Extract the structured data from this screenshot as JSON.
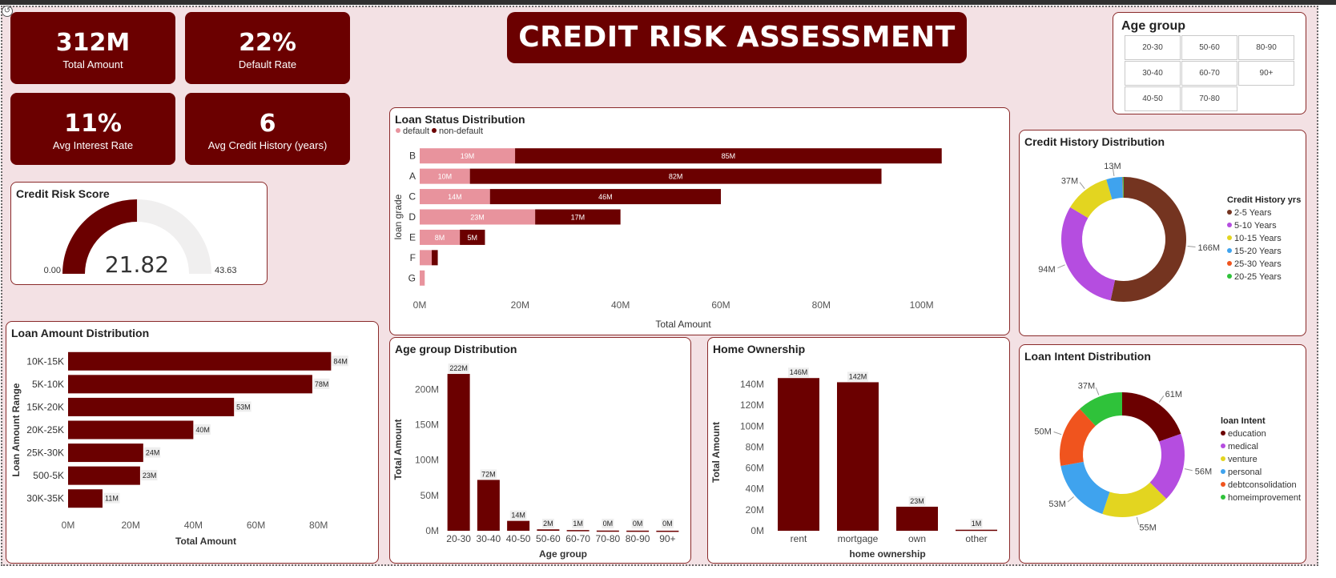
{
  "kpis": [
    {
      "value": "312M",
      "label": "Total Amount"
    },
    {
      "value": "22%",
      "label": "Default Rate"
    },
    {
      "value": "11%",
      "label": "Avg Interest Rate"
    },
    {
      "value": "6",
      "label": "Avg Credit History (years)"
    }
  ],
  "header": {
    "title": "CREDIT RISK ASSESSMENT"
  },
  "slicer": {
    "title": "Age group",
    "items": [
      "20-30",
      "50-60",
      "80-90",
      "30-40",
      "60-70",
      "90+",
      "40-50",
      "70-80"
    ]
  },
  "colors": {
    "accent": "#6b0000",
    "default": "#e8939d",
    "gaugeTrack": "#f0efef"
  },
  "chart_data": [
    {
      "id": "credit_risk_score",
      "type": "gauge",
      "title": "Credit Risk Score",
      "value": 21.82,
      "min": 0,
      "max": 43.63,
      "value_label": "21.82",
      "min_label": "0.00",
      "max_label": "43.63"
    },
    {
      "id": "loan_status",
      "type": "bar",
      "orientation": "horizontal",
      "stacked": true,
      "title": "Loan Status Distribution",
      "xlabel": "Total Amount",
      "ylabel": "loan grade",
      "categories": [
        "B",
        "A",
        "C",
        "D",
        "E",
        "F",
        "G"
      ],
      "series": [
        {
          "name": "default",
          "color": "#e8939d",
          "values": [
            19,
            10,
            14,
            23,
            8,
            2.4,
            1
          ],
          "labels": [
            "19M",
            "10M",
            "14M",
            "23M",
            "8M",
            "",
            ""
          ]
        },
        {
          "name": "non-default",
          "color": "#6b0000",
          "values": [
            85,
            82,
            46,
            17,
            5,
            1.2,
            0
          ],
          "labels": [
            "85M",
            "82M",
            "46M",
            "17M",
            "5M",
            "",
            ""
          ]
        }
      ],
      "xlim": [
        0,
        105
      ],
      "ticks": [
        0,
        20,
        40,
        60,
        80,
        100
      ],
      "tick_labels": [
        "0M",
        "20M",
        "40M",
        "60M",
        "80M",
        "100M"
      ],
      "legend": "top-left"
    },
    {
      "id": "credit_history",
      "type": "pie",
      "donut": true,
      "title": "Credit History Distribution",
      "legend_title": "Credit History yrs",
      "categories": [
        "2-5 Years",
        "5-10 Years",
        "10-15 Years",
        "15-20 Years",
        "25-30 Years",
        "20-25 Years"
      ],
      "values": [
        166,
        94,
        37,
        13,
        0.4,
        0.6
      ],
      "colors": [
        "#743420",
        "#b54de0",
        "#e3d520",
        "#3fa3ee",
        "#f0541e",
        "#2fc23a"
      ],
      "labels": [
        "166M",
        "94M",
        "37M",
        "13M",
        "",
        ""
      ],
      "legend": "right"
    },
    {
      "id": "loan_amount",
      "type": "bar",
      "orientation": "horizontal",
      "title": "Loan Amount Distribution",
      "xlabel": "Total Amount",
      "ylabel": "Loan Amount Range",
      "categories": [
        "10K-15K",
        "5K-10K",
        "15K-20K",
        "20K-25K",
        "25K-30K",
        "500-5K",
        "30K-35K"
      ],
      "values": [
        84,
        78,
        53,
        40,
        24,
        23,
        11
      ],
      "labels": [
        "84M",
        "78M",
        "53M",
        "40M",
        "24M",
        "23M",
        "11M"
      ],
      "xlim": [
        0,
        88
      ],
      "ticks": [
        0,
        20,
        40,
        60,
        80
      ],
      "tick_labels": [
        "0M",
        "20M",
        "40M",
        "60M",
        "80M"
      ]
    },
    {
      "id": "age_group",
      "type": "bar",
      "orientation": "vertical",
      "title": "Age group Distribution",
      "xlabel": "Age group",
      "ylabel": "Total Amount",
      "categories": [
        "20-30",
        "30-40",
        "40-50",
        "50-60",
        "60-70",
        "70-80",
        "80-90",
        "90+"
      ],
      "values": [
        222,
        72,
        14,
        2,
        1,
        0.3,
        0.2,
        0.1
      ],
      "labels": [
        "222M",
        "72M",
        "14M",
        "2M",
        "1M",
        "0M",
        "0M",
        "0M"
      ],
      "ylim": [
        0,
        230
      ],
      "ticks": [
        0,
        50,
        100,
        150,
        200
      ],
      "tick_labels": [
        "0M",
        "50M",
        "100M",
        "150M",
        "200M"
      ]
    },
    {
      "id": "home_ownership",
      "type": "bar",
      "orientation": "vertical",
      "title": "Home Ownership",
      "xlabel": "home ownership",
      "ylabel": "Total Amount",
      "categories": [
        "rent",
        "mortgage",
        "own",
        "other"
      ],
      "values": [
        146,
        142,
        23,
        1
      ],
      "labels": [
        "146M",
        "142M",
        "23M",
        "1M"
      ],
      "ylim": [
        0,
        150
      ],
      "ticks": [
        0,
        20,
        40,
        60,
        80,
        100,
        120,
        140
      ],
      "tick_labels": [
        "0M",
        "20M",
        "40M",
        "60M",
        "80M",
        "100M",
        "120M",
        "140M"
      ]
    },
    {
      "id": "loan_intent",
      "type": "pie",
      "donut": true,
      "title": "Loan Intent Distribution",
      "legend_title": "loan Intent",
      "categories": [
        "education",
        "medical",
        "venture",
        "personal",
        "debtconsolidation",
        "homeimprovement"
      ],
      "values": [
        61,
        56,
        55,
        53,
        50,
        37
      ],
      "colors": [
        "#6b0000",
        "#b54de0",
        "#e3d520",
        "#3fa3ee",
        "#f0541e",
        "#2fc23a"
      ],
      "labels": [
        "61M",
        "56M",
        "55M",
        "53M",
        "50M",
        "37M"
      ],
      "legend": "right"
    }
  ]
}
